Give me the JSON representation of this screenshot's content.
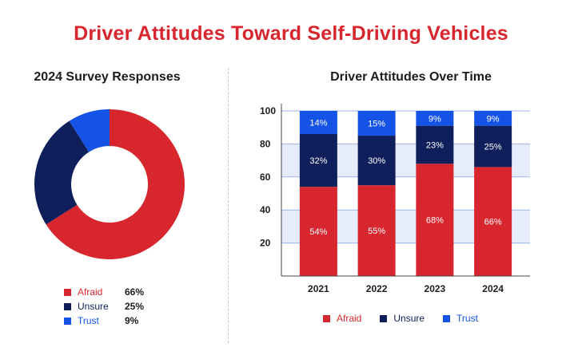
{
  "page_title": "Driver Attitudes Toward Self-Driving Vehicles",
  "colors": {
    "afraid": "#d7262e",
    "unsure": "#0f1f5c",
    "trust": "#1553e6",
    "title": "#d7262e"
  },
  "chart_data": [
    {
      "type": "pie",
      "title": "2024 Survey Responses",
      "donut": true,
      "slices": [
        {
          "name": "Afraid",
          "value": 66,
          "label": "66%"
        },
        {
          "name": "Unsure",
          "value": 25,
          "label": "25%"
        },
        {
          "name": "Trust",
          "value": 9,
          "label": "9%"
        }
      ],
      "legend": "bottom-left"
    },
    {
      "type": "bar",
      "stacked": true,
      "title": "Driver Attitudes Over Time",
      "categories": [
        "2021",
        "2022",
        "2023",
        "2024"
      ],
      "series": [
        {
          "name": "Afraid",
          "values": [
            54,
            55,
            68,
            66
          ],
          "labels": [
            "54%",
            "55%",
            "68%",
            "66%"
          ]
        },
        {
          "name": "Unsure",
          "values": [
            32,
            30,
            23,
            25
          ],
          "labels": [
            "32%",
            "30%",
            "23%",
            "25%"
          ]
        },
        {
          "name": "Trust",
          "values": [
            14,
            15,
            9,
            9
          ],
          "labels": [
            "14%",
            "15%",
            "9%",
            "9%"
          ]
        }
      ],
      "ylim": [
        0,
        100
      ],
      "yticks": [
        "20",
        "40",
        "60",
        "80",
        "100"
      ],
      "xlabel": "",
      "ylabel": "",
      "grid": "alternating bands",
      "legend": "bottom"
    }
  ]
}
